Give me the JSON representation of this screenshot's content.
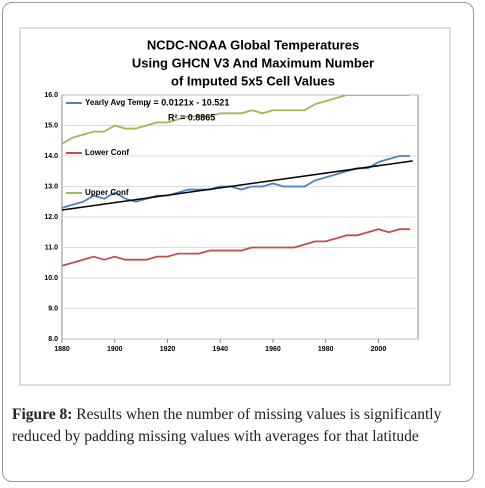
{
  "chart_data": {
    "type": "line",
    "title": [
      "NCDC-NOAA Global Temperatures",
      "Using GHCN V3 And Maximum Number",
      "of Imputed 5x5 Cell Values"
    ],
    "x": [
      1880,
      1884,
      1888,
      1892,
      1896,
      1900,
      1904,
      1908,
      1912,
      1916,
      1920,
      1924,
      1928,
      1932,
      1936,
      1940,
      1944,
      1948,
      1952,
      1956,
      1960,
      1964,
      1968,
      1972,
      1976,
      1980,
      1984,
      1988,
      1992,
      1996,
      2000,
      2004,
      2008,
      2012
    ],
    "series": [
      {
        "name": "Yearly Avg Temp",
        "color": "#4f81bd",
        "values": [
          12.3,
          12.4,
          12.5,
          12.7,
          12.6,
          12.8,
          12.6,
          12.5,
          12.6,
          12.7,
          12.7,
          12.8,
          12.9,
          12.9,
          12.9,
          13.0,
          13.0,
          12.9,
          13.0,
          13.0,
          13.1,
          13.0,
          13.0,
          13.0,
          13.2,
          13.3,
          13.4,
          13.5,
          13.6,
          13.6,
          13.8,
          13.9,
          14.0,
          14.0
        ]
      },
      {
        "name": "Lower Conf",
        "color": "#c0504d",
        "values": [
          10.4,
          10.5,
          10.6,
          10.7,
          10.6,
          10.7,
          10.6,
          10.6,
          10.6,
          10.7,
          10.7,
          10.8,
          10.8,
          10.8,
          10.9,
          10.9,
          10.9,
          10.9,
          11.0,
          11.0,
          11.0,
          11.0,
          11.0,
          11.1,
          11.2,
          11.2,
          11.3,
          11.4,
          11.4,
          11.5,
          11.6,
          11.5,
          11.6,
          11.6
        ]
      },
      {
        "name": "Upper Conf",
        "color": "#9bbb59",
        "values": [
          14.4,
          14.6,
          14.7,
          14.8,
          14.8,
          15.0,
          14.9,
          14.9,
          15.0,
          15.1,
          15.1,
          15.2,
          15.3,
          15.3,
          15.3,
          15.4,
          15.4,
          15.4,
          15.5,
          15.4,
          15.5,
          15.5,
          15.5,
          15.5,
          15.7,
          15.8,
          15.9,
          16.0,
          16.0,
          16.0,
          16.0,
          16.0,
          16.0,
          16.0
        ]
      }
    ],
    "trend": {
      "equation": "y = 0.0121x - 10.521",
      "r2": "R² = 0.8865",
      "color": "#000000",
      "x": [
        1880,
        2013
      ],
      "values": [
        12.23,
        13.84
      ]
    },
    "xlim": [
      1880,
      2015
    ],
    "xticks": [
      1880,
      1900,
      1920,
      1940,
      1960,
      1980,
      2000
    ],
    "ylim": [
      8,
      16
    ],
    "yticks": [
      {
        "value": 8,
        "label": "8.0"
      },
      {
        "value": 9,
        "label": "9.0"
      },
      {
        "value": 10,
        "label": "10.0"
      },
      {
        "value": 11,
        "label": "11.0"
      },
      {
        "value": 12,
        "label": "12.0"
      },
      {
        "value": 13,
        "label": "13.0"
      },
      {
        "value": 14,
        "label": "14.0"
      },
      {
        "value": 15,
        "label": "15.0"
      },
      {
        "value": 16,
        "label": "16.0"
      }
    ],
    "grid": true,
    "legend": "top-left"
  },
  "caption": {
    "label": "Figure 8:",
    "text": "Results when the number of missing values is significantly reduced by padding missing values with averages for that latitude"
  }
}
